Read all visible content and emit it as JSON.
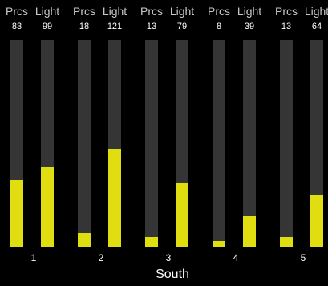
{
  "group": {
    "title": "South"
  },
  "colors": {
    "fill": "#e0de10",
    "track": "#353535",
    "background": "#000000"
  },
  "meter_max": 255,
  "channels": [
    {
      "number": "1",
      "prcs": {
        "label": "Prcs",
        "value": "83"
      },
      "light": {
        "label": "Light",
        "value": "99"
      }
    },
    {
      "number": "2",
      "prcs": {
        "label": "Prcs",
        "value": "18"
      },
      "light": {
        "label": "Light",
        "value": "121"
      }
    },
    {
      "number": "3",
      "prcs": {
        "label": "Prcs",
        "value": "13"
      },
      "light": {
        "label": "Light",
        "value": "79"
      }
    },
    {
      "number": "4",
      "prcs": {
        "label": "Prcs",
        "value": "8"
      },
      "light": {
        "label": "Light",
        "value": "39"
      }
    },
    {
      "number": "5",
      "prcs": {
        "label": "Prcs",
        "value": "13"
      },
      "light": {
        "label": "Light",
        "value": "64"
      }
    }
  ]
}
